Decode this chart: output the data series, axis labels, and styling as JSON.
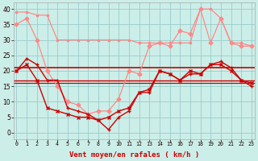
{
  "x": [
    0,
    1,
    2,
    3,
    4,
    5,
    6,
    7,
    8,
    9,
    10,
    11,
    12,
    13,
    14,
    15,
    16,
    17,
    18,
    19,
    20,
    21,
    22,
    23
  ],
  "wind_avg": [
    20,
    24,
    22,
    17,
    17,
    8,
    7,
    6,
    4,
    1,
    5,
    7,
    13,
    13,
    20,
    19,
    17,
    19,
    19,
    22,
    23,
    21,
    17,
    15
  ],
  "wind_gust": [
    20,
    22,
    17,
    8,
    7,
    6,
    5,
    5,
    4,
    5,
    7,
    8,
    13,
    14,
    20,
    19,
    17,
    20,
    19,
    22,
    22,
    20,
    17,
    16
  ],
  "gust_day_max": [
    35,
    37,
    30,
    20,
    15,
    10,
    9,
    6,
    7,
    7,
    11,
    20,
    19,
    28,
    29,
    28,
    33,
    32,
    40,
    29,
    37,
    29,
    28,
    28
  ],
  "gust_upper": [
    39,
    39,
    38,
    38,
    30,
    30,
    30,
    30,
    30,
    30,
    30,
    30,
    29,
    29,
    29,
    29,
    29,
    29,
    40,
    40,
    37,
    29,
    29,
    28
  ],
  "hline1": 21,
  "hline2": 17,
  "hline3": 16,
  "bg_color": "#cceee8",
  "grid_color": "#99cccc",
  "dark_red": "#cc0000",
  "light_red": "#ff8888",
  "xlabel": "Vent moyen/en rafales ( km/h )",
  "ylim": [
    -2,
    42
  ],
  "xlim": [
    -0.3,
    23.3
  ],
  "yticks": [
    0,
    5,
    10,
    15,
    20,
    25,
    30,
    35,
    40
  ],
  "figsize": [
    3.2,
    2.0
  ],
  "dpi": 100
}
